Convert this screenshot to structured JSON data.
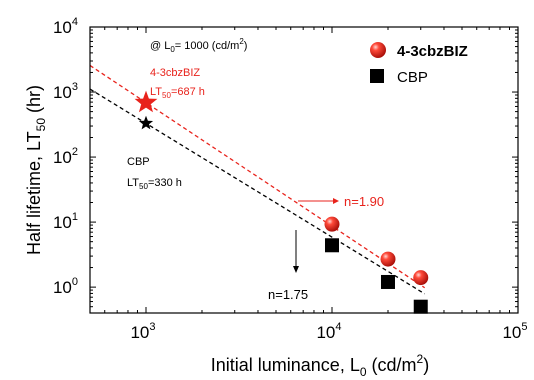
{
  "chart_data": {
    "type": "scatter",
    "xscale": "log",
    "yscale": "log",
    "xlim": [
      500,
      100000
    ],
    "ylim": [
      0.4,
      10000
    ],
    "xlabel": {
      "main": "Initial luminance, L",
      "sub": "0",
      "unit": " (cd/m",
      "sup": "2",
      "end": ")"
    },
    "ylabel": {
      "main": "Half lifetime, LT",
      "sub": "50",
      "end": " (hr)"
    },
    "xticks": [
      {
        "base": "10",
        "exp": "3",
        "value": 1000
      },
      {
        "base": "10",
        "exp": "4",
        "value": 10000
      },
      {
        "base": "10",
        "exp": "5",
        "value": 100000
      }
    ],
    "yticks": [
      {
        "base": "10",
        "exp": "0",
        "value": 1
      },
      {
        "base": "10",
        "exp": "1",
        "value": 10
      },
      {
        "base": "10",
        "exp": "2",
        "value": 100
      },
      {
        "base": "10",
        "exp": "3",
        "value": 1000
      },
      {
        "base": "10",
        "exp": "4",
        "value": 10000
      }
    ],
    "series": [
      {
        "name": "4-3cbzBIZ",
        "color": "#e8231c",
        "marker": "sphere",
        "x": [
          10000,
          20000,
          30000
        ],
        "y": [
          9.3,
          2.7,
          1.4
        ],
        "fit_exponent": 1.9,
        "estimate": {
          "x": 1000,
          "y": 687
        }
      },
      {
        "name": "CBP",
        "color": "#000000",
        "marker": "square",
        "x": [
          10000,
          20000,
          30000
        ],
        "y": [
          4.4,
          1.2,
          0.5
        ],
        "fit_exponent": 1.75,
        "estimate": {
          "x": 1000,
          "y": 330
        }
      }
    ],
    "annotations": {
      "condition": {
        "prefix": "@ L",
        "sub": "0",
        "mid": "= 1000 (cd/m",
        "sup": "2",
        "end": ")"
      },
      "red_name": "4-3cbzBIZ",
      "red_lt": {
        "prefix": "LT",
        "sub": "50",
        "end": "=687 h"
      },
      "black_name": "CBP",
      "black_lt": {
        "prefix": "LT",
        "sub": "50",
        "end": "=330 h"
      },
      "n_red": "n=1.90",
      "n_black": "n=1.75"
    },
    "legend": {
      "position": "top-right"
    }
  }
}
